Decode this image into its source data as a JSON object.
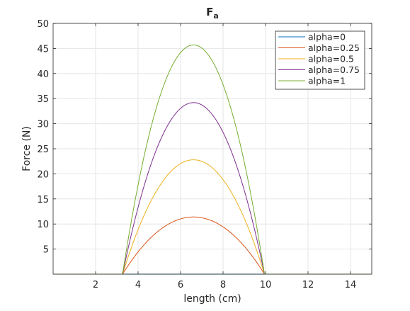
{
  "chart_data": {
    "type": "line",
    "title": "F",
    "title_subscript": "a",
    "xlabel": "length (cm)",
    "ylabel": "Force (N)",
    "xlim": [
      0,
      15
    ],
    "ylim": [
      0,
      50
    ],
    "xticks": [
      2,
      4,
      6,
      8,
      10,
      12,
      14
    ],
    "yticks": [
      5,
      10,
      15,
      20,
      25,
      30,
      35,
      40,
      45,
      50
    ],
    "grid": true,
    "legend_position": "top-right",
    "curve_model": "parabola zero at x=3.27 and x=9.95, peak at x=6.61",
    "series": [
      {
        "name": "alpha=0",
        "color": "#0072BD",
        "peak": 0,
        "x": [
          0,
          3.27,
          6.61,
          9.95,
          15
        ],
        "y": [
          0,
          0,
          0,
          0,
          0
        ]
      },
      {
        "name": "alpha=0.25",
        "color": "#D95319",
        "peak": 11.4,
        "x": [
          0,
          3.27,
          4,
          5,
          6,
          6.61,
          7,
          8,
          9,
          9.95,
          15
        ],
        "y": [
          0,
          0,
          4.4,
          8.6,
          11.0,
          11.4,
          11.3,
          9.5,
          5.7,
          0,
          0
        ]
      },
      {
        "name": "alpha=0.5",
        "color": "#EDB120",
        "peak": 22.8,
        "x": [
          0,
          3.27,
          4,
          5,
          6,
          6.61,
          7,
          8,
          9,
          9.95,
          15
        ],
        "y": [
          0,
          0,
          8.8,
          17.2,
          22.0,
          22.8,
          22.6,
          19.0,
          11.3,
          0,
          0
        ]
      },
      {
        "name": "alpha=0.75",
        "color": "#7E2F8E",
        "peak": 34.2,
        "x": [
          0,
          3.27,
          4,
          5,
          6,
          6.61,
          7,
          8,
          9,
          9.95,
          15
        ],
        "y": [
          0,
          0,
          13.3,
          25.8,
          33.0,
          34.2,
          33.9,
          28.5,
          17.0,
          0,
          0
        ]
      },
      {
        "name": "alpha=1",
        "color": "#77AC30",
        "peak": 45.7,
        "x": [
          0,
          3.27,
          4,
          5,
          6,
          6.61,
          7,
          8,
          9,
          9.95,
          15
        ],
        "y": [
          0,
          0,
          17.7,
          34.4,
          44.1,
          45.7,
          45.3,
          38.1,
          22.7,
          0,
          0
        ]
      }
    ]
  }
}
